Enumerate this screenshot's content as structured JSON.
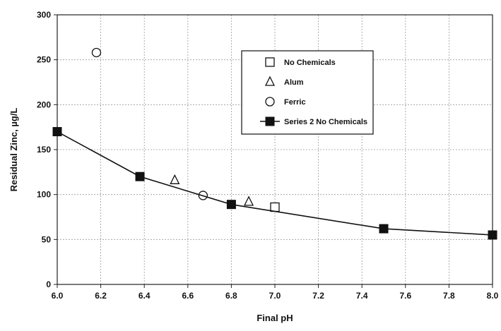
{
  "chart_data": {
    "type": "scatter",
    "title": "",
    "xlabel": "Final pH",
    "ylabel": "Residual Zinc, µg/L",
    "xlim": [
      6.0,
      8.0
    ],
    "ylim": [
      0,
      300
    ],
    "x_ticks": [
      "6.0",
      "6.2",
      "6.4",
      "6.6",
      "6.8",
      "7.0",
      "7.2",
      "7.4",
      "7.6",
      "7.8",
      "8.0"
    ],
    "y_ticks": [
      "0",
      "50",
      "100",
      "150",
      "200",
      "250",
      "300"
    ],
    "grid": true,
    "legend_position": "top-right",
    "series": [
      {
        "name": "No Chemicals",
        "marker": "open-square",
        "line": false,
        "points": [
          [
            7.0,
            86
          ]
        ]
      },
      {
        "name": "Alum",
        "marker": "open-triangle",
        "line": false,
        "points": [
          [
            6.54,
            116
          ],
          [
            6.88,
            92
          ]
        ]
      },
      {
        "name": "Ferric",
        "marker": "open-circle",
        "line": false,
        "points": [
          [
            6.18,
            258
          ],
          [
            6.67,
            99
          ]
        ]
      },
      {
        "name": "Series 2 No Chemicals",
        "marker": "filled-square",
        "line": true,
        "points": [
          [
            6.0,
            170
          ],
          [
            6.38,
            120
          ],
          [
            6.8,
            89
          ],
          [
            7.5,
            62
          ],
          [
            8.0,
            55
          ]
        ]
      }
    ]
  }
}
